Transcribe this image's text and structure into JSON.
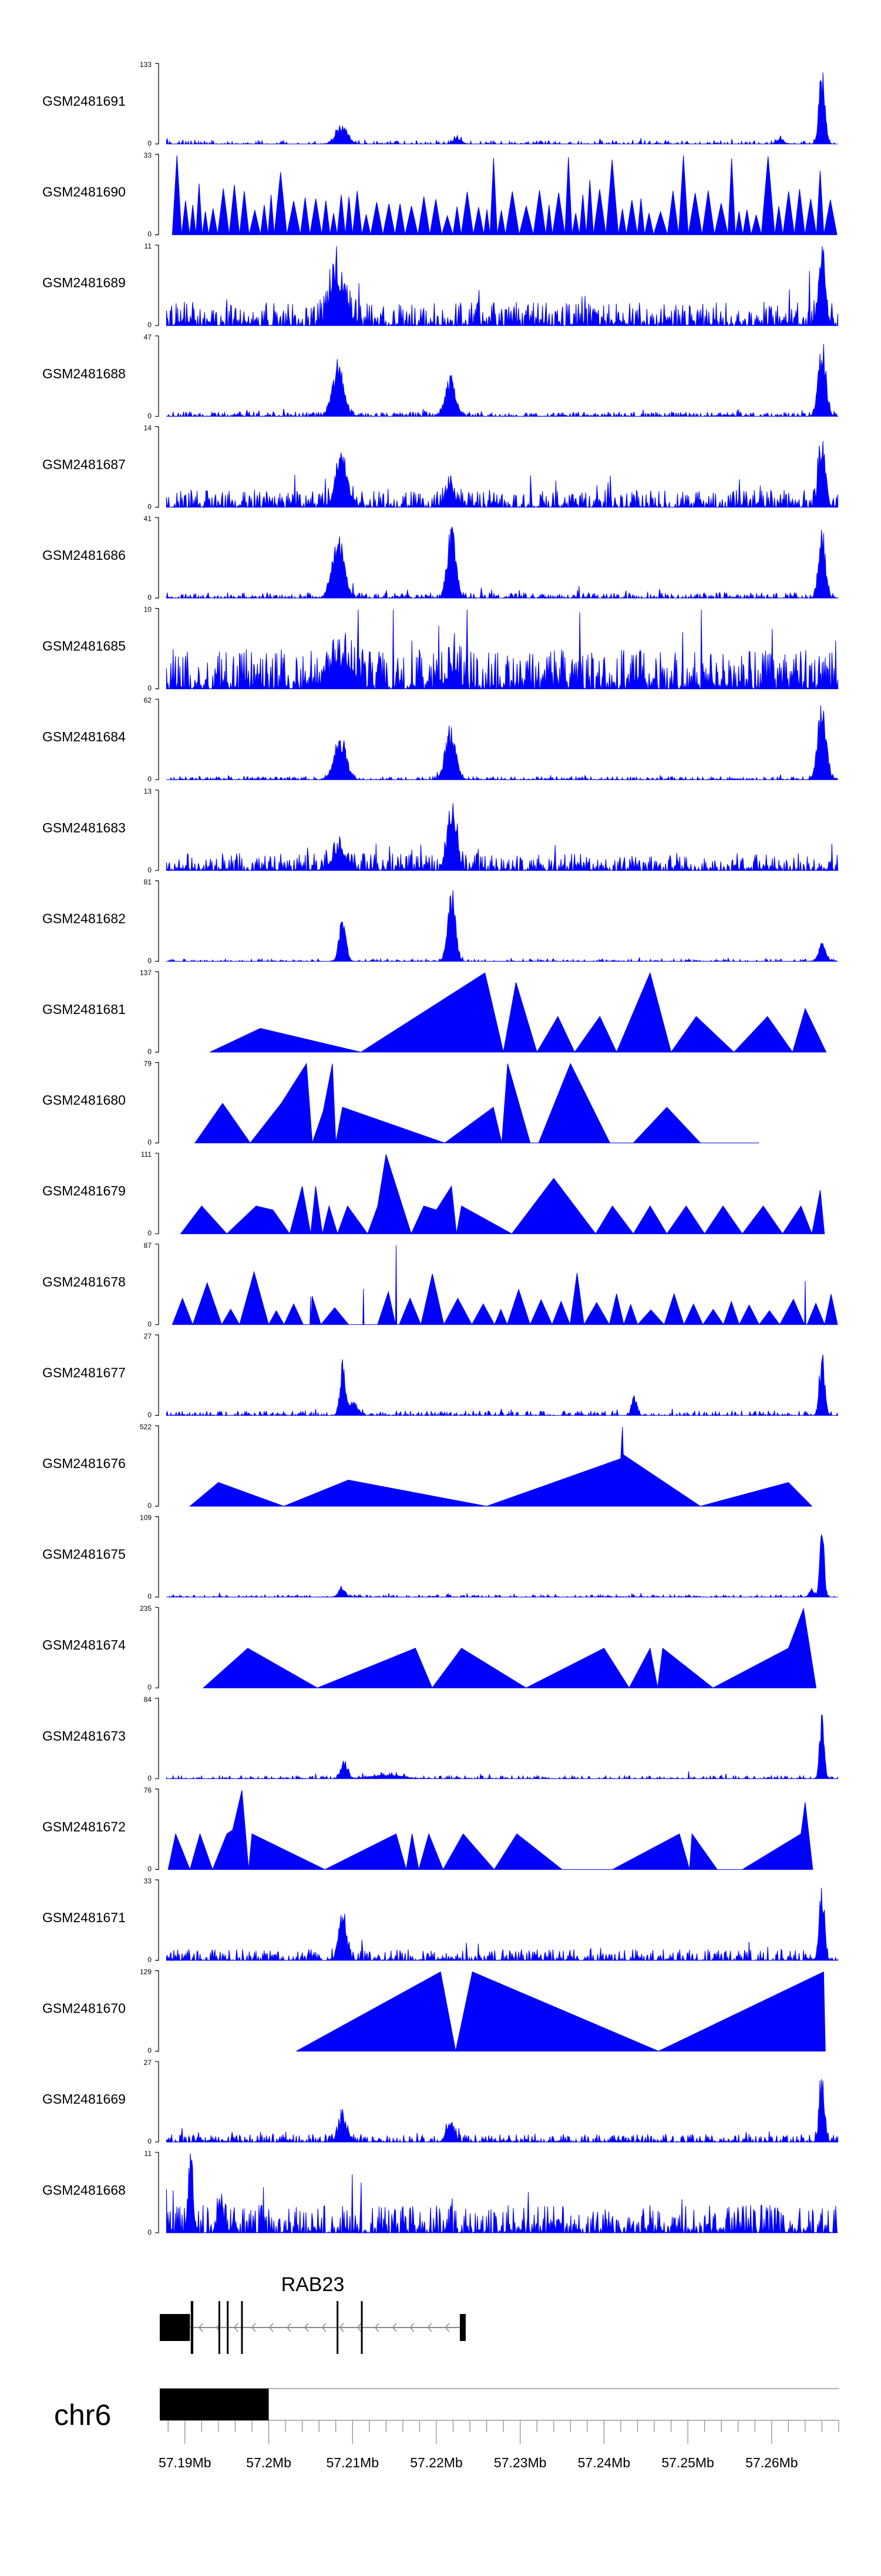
{
  "chart_data": {
    "type": "area",
    "title": "",
    "region": {
      "chromosome": "chr6",
      "start": 57187000,
      "end": 57268000
    },
    "x_ticks": [
      "57.19Mb",
      "57.2Mb",
      "57.21Mb",
      "57.22Mb",
      "57.23Mb",
      "57.24Mb",
      "57.25Mb",
      "57.26Mb"
    ],
    "x_tick_values": [
      57190000,
      57200000,
      57210000,
      57220000,
      57230000,
      57240000,
      57250000,
      57260000
    ],
    "grid": false,
    "gene": {
      "name": "RAB23",
      "strand": "-",
      "start": 57187000,
      "end": 57223500,
      "exons": [
        [
          57187000,
          57190600
        ],
        [
          57190700,
          57191000
        ],
        [
          57194000,
          57194200
        ],
        [
          57195000,
          57195200
        ],
        [
          57196700,
          57196900
        ],
        [
          57208100,
          57208300
        ],
        [
          57211000,
          57211200
        ],
        [
          57222800,
          57223500
        ]
      ]
    },
    "series": [
      {
        "name": "GSM2481691",
        "ymin": "0",
        "ymax": "133",
        "max": 133,
        "profile": "peaks",
        "seed": 11,
        "noise": 0.05,
        "sparsity": 0.6,
        "peaks": [
          [
            57208700,
            700,
            0.25
          ],
          [
            57266000,
            350,
            1.0
          ],
          [
            57222500,
            500,
            0.08
          ],
          [
            57261000,
            400,
            0.08
          ]
        ]
      },
      {
        "name": "GSM2481690",
        "ymin": "0",
        "ymax": "33",
        "max": 33,
        "profile": "spiky",
        "seed": 12,
        "spacing": 1200,
        "level": 0.45,
        "spikes": 0.9
      },
      {
        "name": "GSM2481689",
        "ymin": "0",
        "ymax": "11",
        "max": 11,
        "profile": "peaks",
        "seed": 13,
        "noise": 0.3,
        "sparsity": 0.15,
        "peaks": [
          [
            57208300,
            900,
            0.7
          ],
          [
            57266000,
            400,
            0.9
          ]
        ]
      },
      {
        "name": "GSM2481688",
        "ymin": "0",
        "ymax": "47",
        "max": 47,
        "profile": "peaks",
        "seed": 14,
        "noise": 0.06,
        "sparsity": 0.3,
        "peaks": [
          [
            57208300,
            700,
            0.7
          ],
          [
            57221700,
            600,
            0.55
          ],
          [
            57266000,
            450,
            1.0
          ]
        ]
      },
      {
        "name": "GSM2481687",
        "ymin": "0",
        "ymax": "14",
        "max": 14,
        "profile": "peaks",
        "seed": 15,
        "noise": 0.22,
        "sparsity": 0.2,
        "peaks": [
          [
            57208700,
            700,
            0.7
          ],
          [
            57266000,
            400,
            1.0
          ],
          [
            57221700,
            500,
            0.3
          ]
        ]
      },
      {
        "name": "GSM2481686",
        "ymin": "0",
        "ymax": "41",
        "max": 41,
        "profile": "peaks",
        "seed": 16,
        "noise": 0.07,
        "sparsity": 0.35,
        "peaks": [
          [
            57208300,
            700,
            0.8
          ],
          [
            57221800,
            500,
            1.0
          ],
          [
            57266000,
            400,
            0.9
          ]
        ]
      },
      {
        "name": "GSM2481685",
        "ymin": "0",
        "ymax": "10",
        "max": 10,
        "profile": "peaks",
        "seed": 17,
        "noise": 0.5,
        "sparsity": 0.05,
        "peaks": [
          [
            57208600,
            1200,
            0.4
          ],
          [
            57222000,
            600,
            0.3
          ]
        ]
      },
      {
        "name": "GSM2481684",
        "ymin": "0",
        "ymax": "62",
        "max": 62,
        "profile": "peaks",
        "seed": 18,
        "noise": 0.04,
        "sparsity": 0.4,
        "peaks": [
          [
            57208500,
            700,
            0.6
          ],
          [
            57221700,
            600,
            0.75
          ],
          [
            57266000,
            500,
            1.0
          ]
        ]
      },
      {
        "name": "GSM2481683",
        "ymin": "0",
        "ymax": "13",
        "max": 13,
        "profile": "peaks",
        "seed": 19,
        "noise": 0.22,
        "sparsity": 0.2,
        "peaks": [
          [
            57221900,
            500,
            0.9
          ],
          [
            57208500,
            900,
            0.3
          ]
        ]
      },
      {
        "name": "GSM2481682",
        "ymin": "0",
        "ymax": "81",
        "max": 81,
        "profile": "peaks",
        "seed": 20,
        "noise": 0.03,
        "sparsity": 0.55,
        "peaks": [
          [
            57208800,
            400,
            0.6
          ],
          [
            57221800,
            450,
            1.0
          ],
          [
            57266000,
            400,
            0.25
          ]
        ]
      },
      {
        "name": "GSM2481681",
        "ymin": "0",
        "ymax": "137",
        "max": 137,
        "profile": "points",
        "points": [
          [
            57193000,
            0
          ],
          [
            57199000,
            0.3
          ],
          [
            57211000,
            0
          ],
          [
            57225800,
            1.0
          ],
          [
            57228000,
            0
          ],
          [
            57229500,
            0.88
          ],
          [
            57232000,
            0
          ],
          [
            57234500,
            0.45
          ],
          [
            57236500,
            0
          ],
          [
            57239500,
            0.45
          ],
          [
            57241500,
            0
          ],
          [
            57243500,
            0.5
          ],
          [
            57245500,
            1.0
          ],
          [
            57248000,
            0
          ],
          [
            57251000,
            0.45
          ],
          [
            57255500,
            0
          ],
          [
            57259500,
            0.45
          ],
          [
            57262500,
            0
          ],
          [
            57264000,
            0.55
          ],
          [
            57266500,
            0
          ]
        ]
      },
      {
        "name": "GSM2481680",
        "ymin": "0",
        "ymax": "79",
        "max": 79,
        "profile": "points",
        "points": [
          [
            57191200,
            0
          ],
          [
            57194500,
            0.5
          ],
          [
            57197800,
            0
          ],
          [
            57201500,
            0.5
          ],
          [
            57204500,
            1.0
          ],
          [
            57205200,
            0
          ],
          [
            57206500,
            0.4
          ],
          [
            57207600,
            1.0
          ],
          [
            57208000,
            0
          ],
          [
            57208800,
            0.45
          ],
          [
            57221000,
            0
          ],
          [
            57226800,
            0.45
          ],
          [
            57227800,
            0
          ],
          [
            57228500,
            1.0
          ],
          [
            57231200,
            0
          ],
          [
            57232200,
            0
          ],
          [
            57236000,
            1.0
          ],
          [
            57240700,
            0
          ],
          [
            57243500,
            0
          ],
          [
            57247500,
            0.45
          ],
          [
            57251500,
            0
          ],
          [
            57258500,
            0
          ]
        ]
      },
      {
        "name": "GSM2481679",
        "ymin": "0",
        "ymax": "111",
        "max": 111,
        "profile": "points",
        "points": [
          [
            57189500,
            0
          ],
          [
            57192000,
            0.35
          ],
          [
            57195000,
            0
          ],
          [
            57198500,
            0.35
          ],
          [
            57200500,
            0.3
          ],
          [
            57202500,
            0
          ],
          [
            57204000,
            0.6
          ],
          [
            57205000,
            0
          ],
          [
            57205600,
            0.6
          ],
          [
            57206400,
            0
          ],
          [
            57207200,
            0.35
          ],
          [
            57208200,
            0
          ],
          [
            57209400,
            0.35
          ],
          [
            57211800,
            0
          ],
          [
            57213000,
            0.35
          ],
          [
            57214000,
            1.0
          ],
          [
            57217000,
            0
          ],
          [
            57218500,
            0.35
          ],
          [
            57220000,
            0.3
          ],
          [
            57221800,
            0.6
          ],
          [
            57222400,
            0
          ],
          [
            57223000,
            0.35
          ],
          [
            57229000,
            0
          ],
          [
            57234000,
            0.7
          ],
          [
            57239000,
            0
          ],
          [
            57241000,
            0.35
          ],
          [
            57243500,
            0
          ],
          [
            57245500,
            0.35
          ],
          [
            57247500,
            0
          ],
          [
            57249800,
            0.35
          ],
          [
            57252000,
            0
          ],
          [
            57254200,
            0.35
          ],
          [
            57256500,
            0
          ],
          [
            57259000,
            0.35
          ],
          [
            57261300,
            0
          ],
          [
            57263500,
            0.35
          ],
          [
            57264800,
            0
          ],
          [
            57265800,
            0.55
          ],
          [
            57266300,
            0
          ]
        ]
      },
      {
        "name": "GSM2481678",
        "ymin": "0",
        "ymax": "87",
        "max": 87,
        "profile": "spiky",
        "seed": 21,
        "spacing": 2500,
        "level": 0.32,
        "spikes": 0.4,
        "baseSpikes": [
          [
            57215200,
            1.0
          ],
          [
            57211300,
            0.45
          ],
          [
            57205000,
            0.35
          ],
          [
            57264000,
            0.55
          ]
        ]
      },
      {
        "name": "GSM2481677",
        "ymin": "0",
        "ymax": "27",
        "max": 27,
        "profile": "peaks",
        "seed": 22,
        "noise": 0.06,
        "sparsity": 0.45,
        "peaks": [
          [
            57208800,
            300,
            0.7
          ],
          [
            57266000,
            300,
            0.9
          ],
          [
            57243600,
            300,
            0.3
          ],
          [
            57210000,
            600,
            0.2
          ]
        ]
      },
      {
        "name": "GSM2481676",
        "ymin": "0",
        "ymax": "522",
        "max": 522,
        "profile": "points",
        "points": [
          [
            57190600,
            0
          ],
          [
            57194000,
            0.3
          ],
          [
            57201800,
            0
          ],
          [
            57209500,
            0.33
          ],
          [
            57226000,
            0
          ],
          [
            57242000,
            0.6
          ],
          [
            57242200,
            1.0
          ],
          [
            57242300,
            0.65
          ],
          [
            57251500,
            0
          ],
          [
            57262000,
            0.3
          ],
          [
            57264800,
            0
          ]
        ]
      },
      {
        "name": "GSM2481675",
        "ymin": "0",
        "ymax": "109",
        "max": 109,
        "profile": "peaks",
        "seed": 23,
        "noise": 0.03,
        "sparsity": 0.5,
        "peaks": [
          [
            57266000,
            250,
            1.0
          ],
          [
            57208700,
            400,
            0.15
          ],
          [
            57264800,
            300,
            0.1
          ]
        ]
      },
      {
        "name": "GSM2481674",
        "ymin": "0",
        "ymax": "235",
        "max": 235,
        "profile": "points",
        "points": [
          [
            57192200,
            0
          ],
          [
            57197500,
            0.5
          ],
          [
            57205800,
            0
          ],
          [
            57217500,
            0.5
          ],
          [
            57219500,
            0
          ],
          [
            57223000,
            0.5
          ],
          [
            57230700,
            0
          ],
          [
            57240000,
            0.5
          ],
          [
            57243000,
            0
          ],
          [
            57245500,
            0.5
          ],
          [
            57246400,
            0
          ],
          [
            57247000,
            0.5
          ],
          [
            57253000,
            0
          ],
          [
            57262000,
            0.5
          ],
          [
            57263800,
            1.0
          ],
          [
            57265300,
            0
          ]
        ]
      },
      {
        "name": "GSM2481673",
        "ymin": "0",
        "ymax": "84",
        "max": 84,
        "profile": "peaks",
        "seed": 24,
        "noise": 0.04,
        "sparsity": 0.5,
        "peaks": [
          [
            57266000,
            250,
            1.0
          ],
          [
            57209000,
            400,
            0.25
          ],
          [
            57214000,
            2000,
            0.05
          ]
        ]
      },
      {
        "name": "GSM2481672",
        "ymin": "0",
        "ymax": "76",
        "max": 76,
        "profile": "points",
        "points": [
          [
            57188000,
            0
          ],
          [
            57188900,
            0.45
          ],
          [
            57190600,
            0
          ],
          [
            57191800,
            0.45
          ],
          [
            57193300,
            0
          ],
          [
            57195000,
            0.45
          ],
          [
            57195700,
            0.5
          ],
          [
            57196800,
            1.0
          ],
          [
            57197600,
            0
          ],
          [
            57198000,
            0.45
          ],
          [
            57206700,
            0
          ],
          [
            57215200,
            0.45
          ],
          [
            57216400,
            0
          ],
          [
            57217100,
            0.45
          ],
          [
            57217900,
            0
          ],
          [
            57219100,
            0.45
          ],
          [
            57220800,
            0
          ],
          [
            57223200,
            0.45
          ],
          [
            57226900,
            0
          ],
          [
            57229600,
            0.45
          ],
          [
            57235000,
            0
          ],
          [
            57241000,
            0
          ],
          [
            57249000,
            0.45
          ],
          [
            57250200,
            0
          ],
          [
            57250500,
            0.45
          ],
          [
            57253500,
            0
          ],
          [
            57256500,
            0
          ],
          [
            57263500,
            0.45
          ],
          [
            57264000,
            0.85
          ],
          [
            57264900,
            0
          ]
        ]
      },
      {
        "name": "GSM2481671",
        "ymin": "0",
        "ymax": "33",
        "max": 33,
        "profile": "peaks",
        "seed": 25,
        "noise": 0.14,
        "sparsity": 0.25,
        "peaks": [
          [
            57208800,
            500,
            0.6
          ],
          [
            57266000,
            300,
            1.0
          ]
        ]
      },
      {
        "name": "GSM2481670",
        "ymin": "0",
        "ymax": "129",
        "max": 129,
        "profile": "points",
        "points": [
          [
            57203300,
            0
          ],
          [
            57220500,
            1.0
          ],
          [
            57222300,
            0
          ],
          [
            57224300,
            1.0
          ],
          [
            57246500,
            0
          ],
          [
            57266200,
            1.0
          ],
          [
            57266400,
            0
          ]
        ]
      },
      {
        "name": "GSM2481669",
        "ymin": "0",
        "ymax": "27",
        "max": 27,
        "profile": "peaks",
        "seed": 26,
        "noise": 0.1,
        "sparsity": 0.25,
        "peaks": [
          [
            57208800,
            500,
            0.4
          ],
          [
            57266000,
            300,
            1.0
          ],
          [
            57221700,
            500,
            0.25
          ]
        ]
      },
      {
        "name": "GSM2481668",
        "ymin": "0",
        "ymax": "11",
        "max": 11,
        "profile": "peaks",
        "seed": 27,
        "noise": 0.35,
        "sparsity": 0.15,
        "peaks": [
          [
            57190700,
            300,
            0.9
          ],
          [
            57194200,
            300,
            0.6
          ]
        ]
      }
    ]
  }
}
